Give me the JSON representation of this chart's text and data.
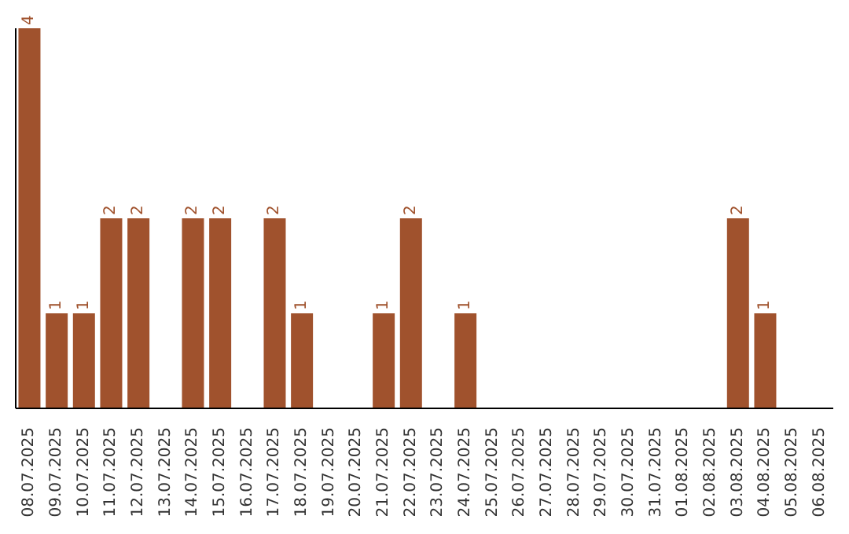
{
  "chart_data": {
    "type": "bar",
    "categories": [
      "08.07.2025",
      "09.07.2025",
      "10.07.2025",
      "11.07.2025",
      "12.07.2025",
      "13.07.2025",
      "14.07.2025",
      "15.07.2025",
      "16.07.2025",
      "17.07.2025",
      "18.07.2025",
      "19.07.2025",
      "20.07.2025",
      "21.07.2025",
      "22.07.2025",
      "23.07.2025",
      "24.07.2025",
      "25.07.2025",
      "26.07.2025",
      "27.07.2025",
      "28.07.2025",
      "29.07.2025",
      "30.07.2025",
      "31.07.2025",
      "01.08.2025",
      "02.08.2025",
      "03.08.2025",
      "04.08.2025",
      "05.08.2025",
      "06.08.2025"
    ],
    "values": [
      4,
      1,
      1,
      2,
      2,
      0,
      2,
      2,
      0,
      2,
      1,
      0,
      0,
      1,
      2,
      0,
      1,
      0,
      0,
      0,
      0,
      0,
      0,
      0,
      0,
      0,
      2,
      1,
      0,
      0
    ],
    "value_labels": [
      "4",
      "1",
      "1",
      "2",
      "2",
      null,
      "2",
      "2",
      null,
      "2",
      "1",
      null,
      null,
      "1",
      "2",
      null,
      "1",
      null,
      null,
      null,
      null,
      null,
      null,
      null,
      null,
      null,
      "2",
      "1",
      null,
      null
    ],
    "color": "#a0522d",
    "grid": false,
    "legend": false
  }
}
